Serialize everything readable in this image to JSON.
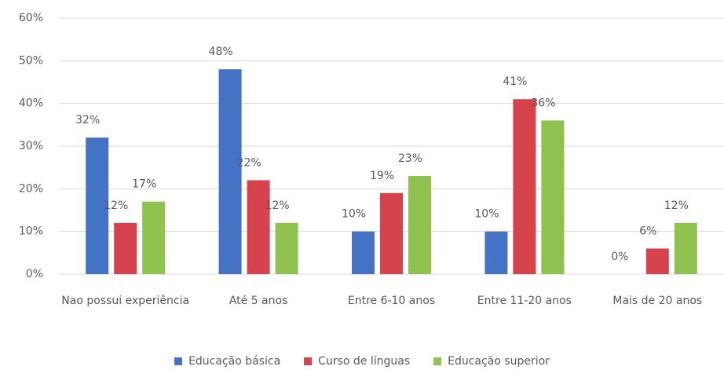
{
  "chart_data": {
    "type": "bar",
    "categories": [
      "Nao possui experiência",
      "Até 5 anos",
      "Entre 6-10 anos",
      "Entre 11-20 anos",
      "Mais de 20 anos"
    ],
    "series": [
      {
        "name": "Educação básica",
        "color": "#4472c4",
        "values": [
          32,
          48,
          10,
          10,
          0
        ],
        "value_labels": [
          "32%",
          "48%",
          "10%",
          "10%",
          "0%"
        ]
      },
      {
        "name": "Curso de línguas",
        "color": "#d7434d",
        "values": [
          12,
          22,
          19,
          41,
          6
        ],
        "value_labels": [
          "12%",
          "22%",
          "19%",
          "41%",
          "6%"
        ]
      },
      {
        "name": "Educação superior",
        "color": "#8fc24f",
        "values": [
          17,
          12,
          23,
          36,
          12
        ],
        "value_labels": [
          "17%",
          "12%",
          "23%",
          "36%",
          "12%"
        ]
      }
    ],
    "ylim": [
      0,
      60
    ],
    "yticks": [
      {
        "value": 0,
        "label": "0%"
      },
      {
        "value": 10,
        "label": "10%"
      },
      {
        "value": 20,
        "label": "20%"
      },
      {
        "value": 30,
        "label": "30%"
      },
      {
        "value": 40,
        "label": "40%"
      },
      {
        "value": 50,
        "label": "50%"
      },
      {
        "value": 60,
        "label": "60%"
      }
    ],
    "grid": true,
    "legend": "bottom"
  }
}
